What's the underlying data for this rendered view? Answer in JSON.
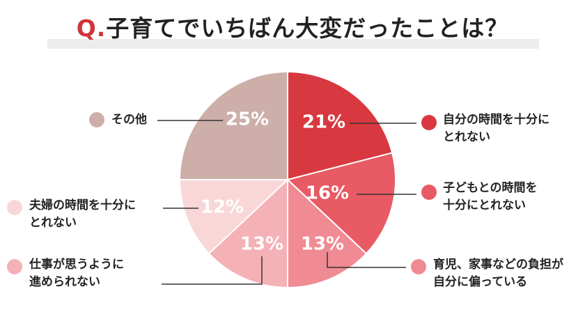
{
  "header": {
    "prefix": "Q.",
    "question": "子育てでいちばん大変だったことは？"
  },
  "chart_data": {
    "type": "pie",
    "slices": [
      {
        "label_lines": [
          "自分の時間を十分に",
          "とれない"
        ],
        "value": 21,
        "value_label": "21%",
        "color": "#d8383f"
      },
      {
        "label_lines": [
          "子どもとの時間を",
          "十分にとれない"
        ],
        "value": 16,
        "value_label": "16%",
        "color": "#e85a64"
      },
      {
        "label_lines": [
          "育児、家事などの負担が",
          "自分に偏っている"
        ],
        "value": 13,
        "value_label": "13%",
        "color": "#f08a93"
      },
      {
        "label_lines": [
          "仕事が思うように",
          "進められない"
        ],
        "value": 13,
        "value_label": "13%",
        "color": "#f4b1b6"
      },
      {
        "label_lines": [
          "夫婦の時間を十分に",
          "とれない"
        ],
        "value": 12,
        "value_label": "12%",
        "color": "#f9d7d9"
      },
      {
        "label_lines": [
          "その他"
        ],
        "value": 25,
        "value_label": "25%",
        "color": "#cdaea9"
      }
    ]
  }
}
